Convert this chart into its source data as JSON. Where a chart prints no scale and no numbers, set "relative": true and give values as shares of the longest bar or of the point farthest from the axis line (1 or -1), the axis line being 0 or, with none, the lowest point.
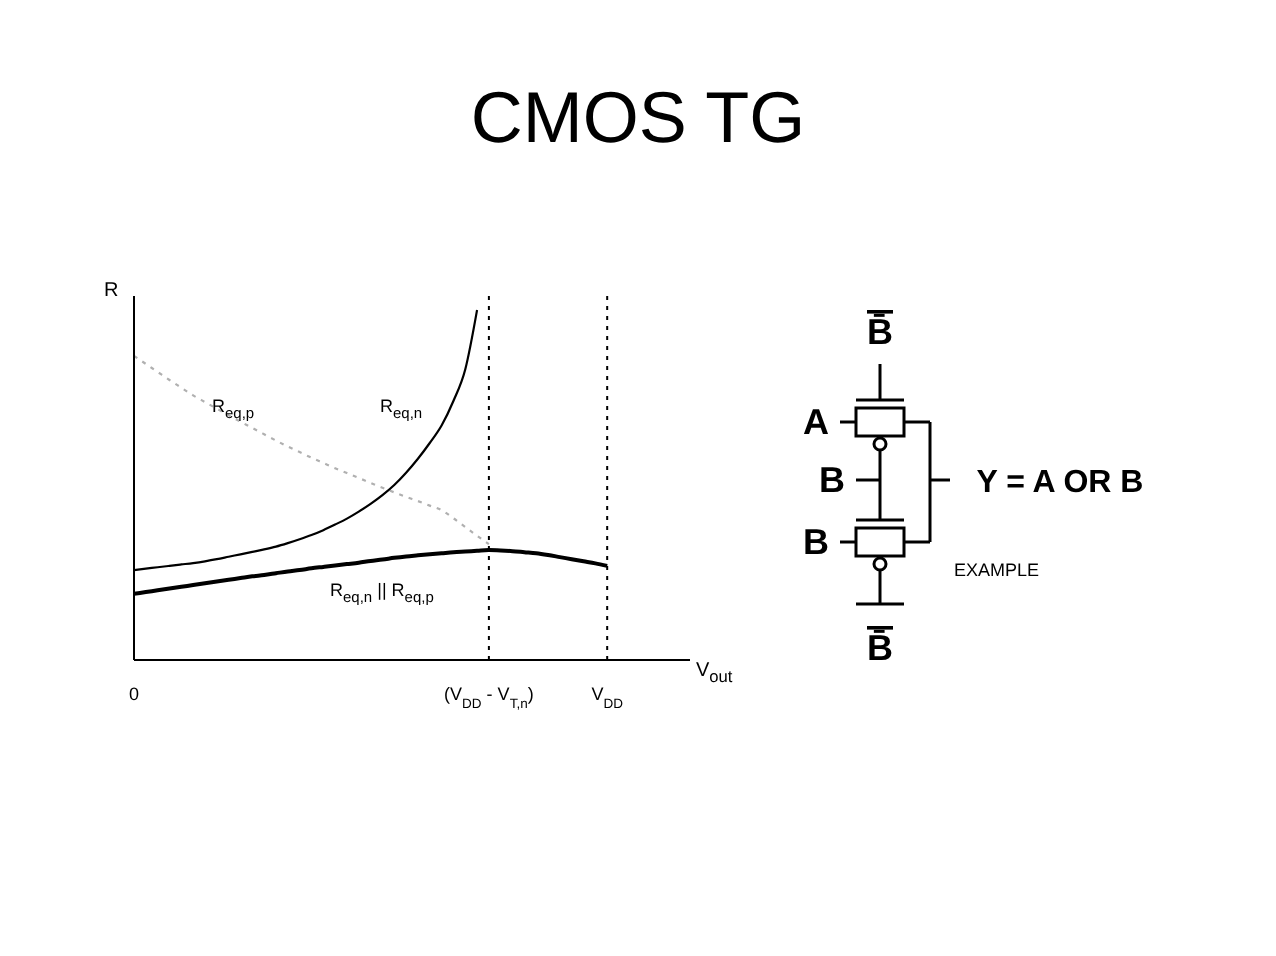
{
  "chart_data": {
    "type": "line",
    "title": "CMOS TG",
    "xlabel": "V$_{out}$",
    "ylabel": "R",
    "relative": true,
    "legend": false,
    "grid": false,
    "marker": "none",
    "categories": [
      "0",
      null,
      null,
      null,
      null,
      null,
      null,
      null,
      null,
      null,
      null,
      null,
      null,
      null,
      null,
      null,
      null,
      null,
      null,
      null,
      null,
      null,
      null,
      null,
      null,
      null,
      null,
      null,
      null,
      null,
      "(V$_{DD}$ - V$_{T,n}$)",
      null,
      null,
      null,
      null,
      null,
      null,
      null,
      null,
      null,
      "V$_{DD}$",
      null,
      null,
      null,
      null,
      null,
      null,
      null
    ],
    "ref_lines": [
      {
        "axis": "x",
        "value": "(V$_{DD}$ - V$_{T,n}$)",
        "color": "#000000",
        "line_style": "dotted"
      },
      {
        "axis": "x",
        "value": "V$_{DD}$",
        "color": "#000000",
        "line_style": "dotted"
      }
    ],
    "series": [
      {
        "name": "R$_{eq,p}$",
        "color": "#b0b0b0",
        "line_style": "dotted",
        "values": [
          0.869,
          0.846,
          0.823,
          0.8,
          0.778,
          0.756,
          0.737,
          0.718,
          0.699,
          0.681,
          0.663,
          0.645,
          0.627,
          0.61,
          0.594,
          0.578,
          0.563,
          0.548,
          0.534,
          0.52,
          0.506,
          0.492,
          0.479,
          0.466,
          0.454,
          0.441,
          0.428,
          0.405,
          0.38,
          0.355,
          0.331,
          null,
          null,
          null,
          null,
          null,
          null,
          null,
          null,
          null,
          null,
          null,
          null,
          null,
          null,
          null,
          null,
          null
        ]
      },
      {
        "name": "R$_{eq,n}$",
        "color": "#000000",
        "line_style": "solid",
        "values": [
          0.257,
          0.261,
          0.265,
          0.269,
          0.273,
          0.277,
          0.282,
          0.288,
          0.295,
          0.302,
          0.309,
          0.316,
          0.324,
          0.334,
          0.345,
          0.357,
          0.371,
          0.387,
          0.404,
          0.424,
          0.446,
          0.471,
          0.5,
          0.535,
          0.575,
          0.62,
          0.67,
          0.74,
          0.83,
          1,
          null,
          null,
          null,
          null,
          null,
          null,
          null,
          null,
          null,
          null,
          null,
          null,
          null,
          null,
          null,
          null,
          null,
          null
        ]
      },
      {
        "name": "R$_{eq,n}$ || R$_{eq,p}$",
        "color": "#000000",
        "line_style": "solid",
        "values": [
          0.189,
          0.194,
          0.199,
          0.204,
          0.209,
          0.214,
          0.219,
          0.224,
          0.229,
          0.234,
          0.239,
          0.243,
          0.248,
          0.253,
          0.257,
          0.262,
          0.266,
          0.27,
          0.274,
          0.278,
          0.283,
          0.287,
          0.292,
          0.296,
          0.299,
          0.302,
          0.305,
          0.308,
          0.31,
          0.312,
          0.314,
          0.313,
          0.311,
          0.308,
          0.305,
          0.3,
          0.294,
          0.288,
          0.282,
          0.276,
          0.269,
          null,
          null,
          null,
          null,
          null,
          null,
          null
        ]
      }
    ],
    "annotations": [
      "B̄",
      "A",
      "B",
      "B",
      "Y = A OR B",
      "EXAMPLE",
      "B̄"
    ]
  }
}
